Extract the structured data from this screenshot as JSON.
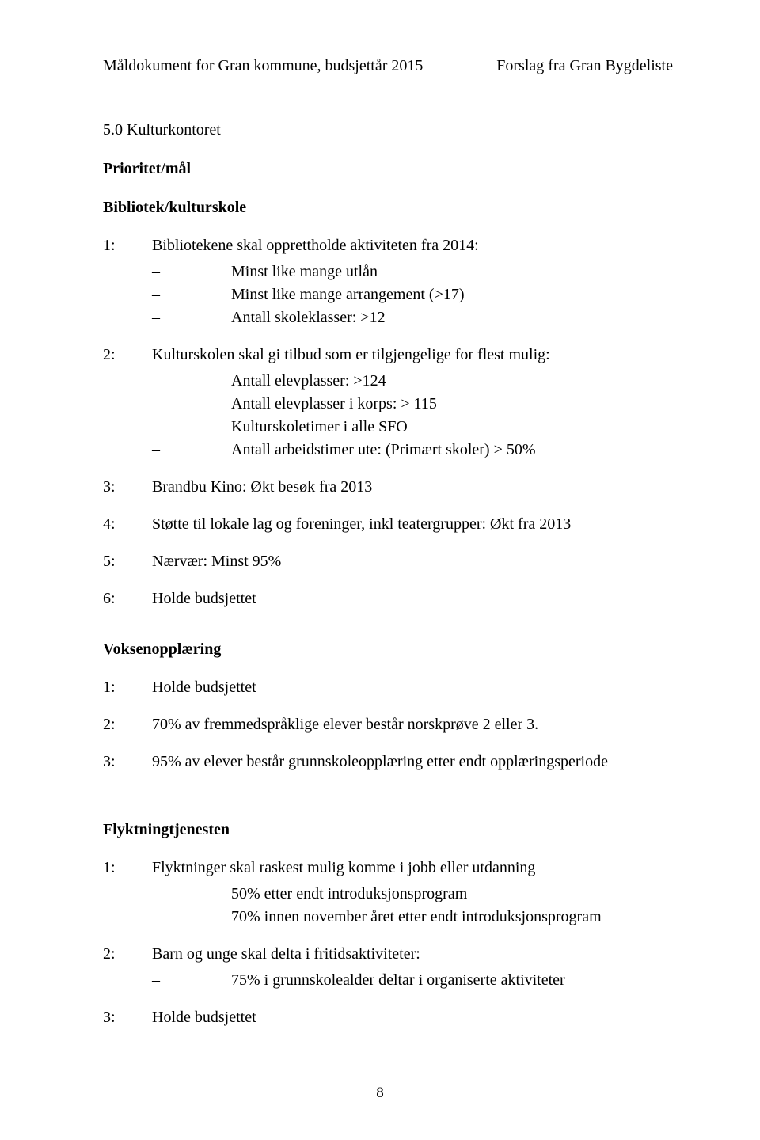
{
  "header": {
    "left": "Måldokument for Gran kommune, budsjettår 2015",
    "right": "Forslag fra Gran Bygdeliste"
  },
  "section_title": "5.0 Kulturkontoret",
  "prioritet_label": "Prioritet/mål",
  "bibliotek": {
    "heading": "Bibliotek/kulturskole",
    "item1": {
      "num": "1:",
      "text": "Bibliotekene skal opprettholde aktiviteten fra 2014:"
    },
    "b1": "Minst like mange utlån",
    "b2": "Minst like mange arrangement (>17)",
    "b3": "Antall skoleklasser: >12",
    "item2": {
      "num": "2:",
      "text": "Kulturskolen skal gi tilbud som er tilgjengelige for flest mulig:"
    },
    "c1": "Antall elevplasser: >124",
    "c2": "Antall elevplasser i korps: > 115",
    "c3": "Kulturskoletimer i alle SFO",
    "c4": "Antall arbeidstimer ute: (Primært skoler) > 50%",
    "item3": {
      "num": "3:",
      "text": "Brandbu Kino: Økt besøk fra 2013"
    },
    "item4": {
      "num": "4:",
      "text": "Støtte til lokale lag og foreninger, inkl teatergrupper: Økt fra 2013"
    },
    "item5": {
      "num": "5:",
      "text": "Nærvær: Minst 95%"
    },
    "item6": {
      "num": "6:",
      "text": "Holde budsjettet"
    }
  },
  "voksen": {
    "heading": "Voksenopplæring",
    "item1": {
      "num": "1:",
      "text": "Holde budsjettet"
    },
    "item2": {
      "num": "2:",
      "text": "70% av fremmedspråklige elever består norskprøve 2 eller 3."
    },
    "item3": {
      "num": "3:",
      "text": "95% av elever består grunnskoleopplæring etter endt opplæringsperiode"
    }
  },
  "flykt": {
    "heading": "Flyktningtjenesten",
    "item1": {
      "num": "1:",
      "text": "Flyktninger skal raskest mulig komme i jobb eller utdanning"
    },
    "f1": "50% etter endt introduksjonsprogram",
    "f2": "70% innen november året etter endt introduksjonsprogram",
    "item2": {
      "num": "2:",
      "text": "Barn og unge skal delta i fritidsaktiviteter:"
    },
    "g1": "75% i grunnskolealder deltar i organiserte aktiviteter",
    "item3": {
      "num": "3:",
      "text": "Holde budsjettet"
    }
  },
  "dash": "–",
  "page_number": "8"
}
